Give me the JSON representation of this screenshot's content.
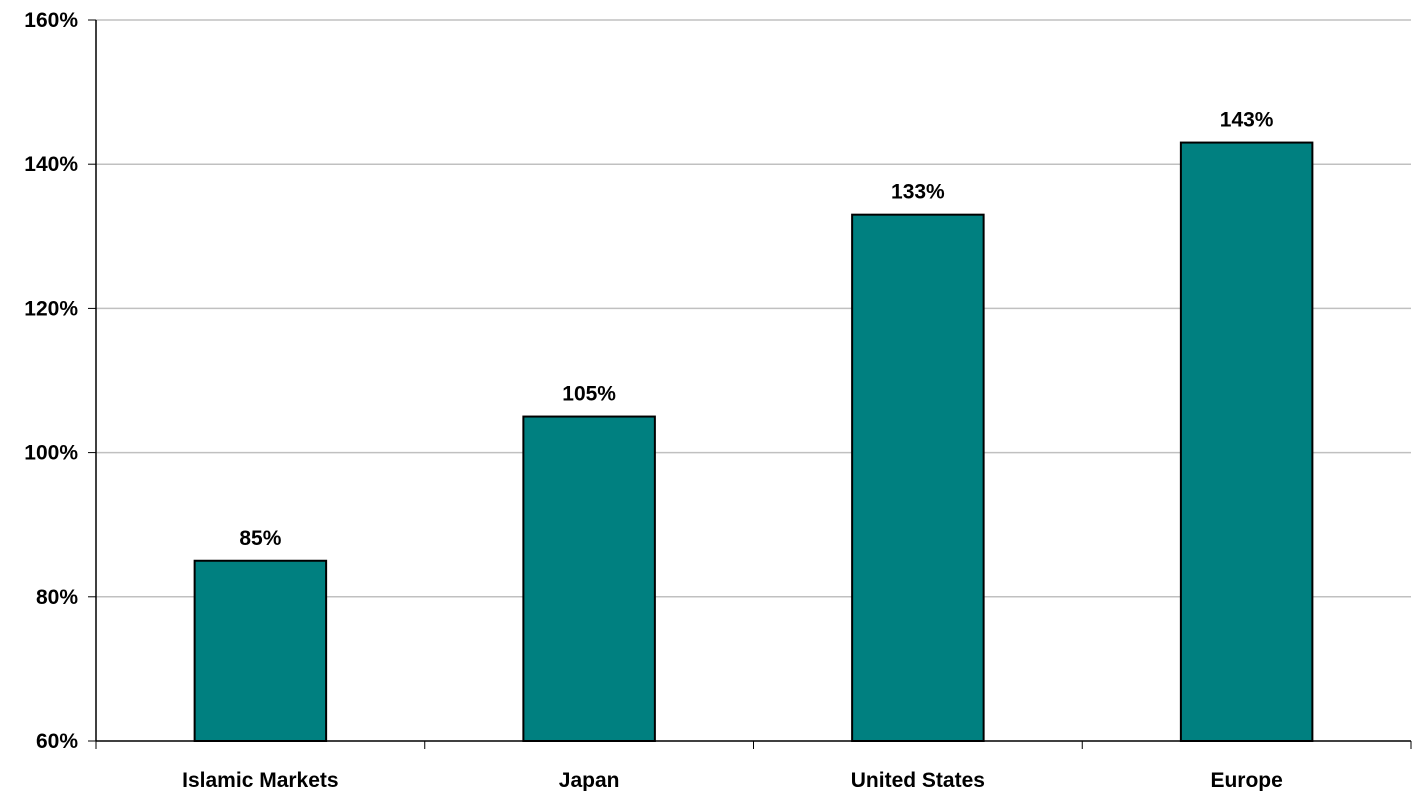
{
  "chart_data": {
    "type": "bar",
    "title": "",
    "xlabel": "",
    "ylabel": "",
    "categories": [
      "Islamic Markets",
      "Japan",
      "United States",
      "Europe"
    ],
    "values": [
      85,
      105,
      133,
      143
    ],
    "data_labels": [
      "85%",
      "105%",
      "133%",
      "143%"
    ],
    "ylim": [
      60,
      160
    ],
    "y_ticks": [
      60,
      80,
      100,
      120,
      140,
      160
    ],
    "y_tick_labels": [
      "60%",
      "80%",
      "100%",
      "120%",
      "140%",
      "160%"
    ],
    "grid": true,
    "legend": "none",
    "colors": {
      "bar_fill": "#008080",
      "bar_stroke": "#000000",
      "gridline": "#c0c0c0",
      "axis": "#000000"
    }
  }
}
